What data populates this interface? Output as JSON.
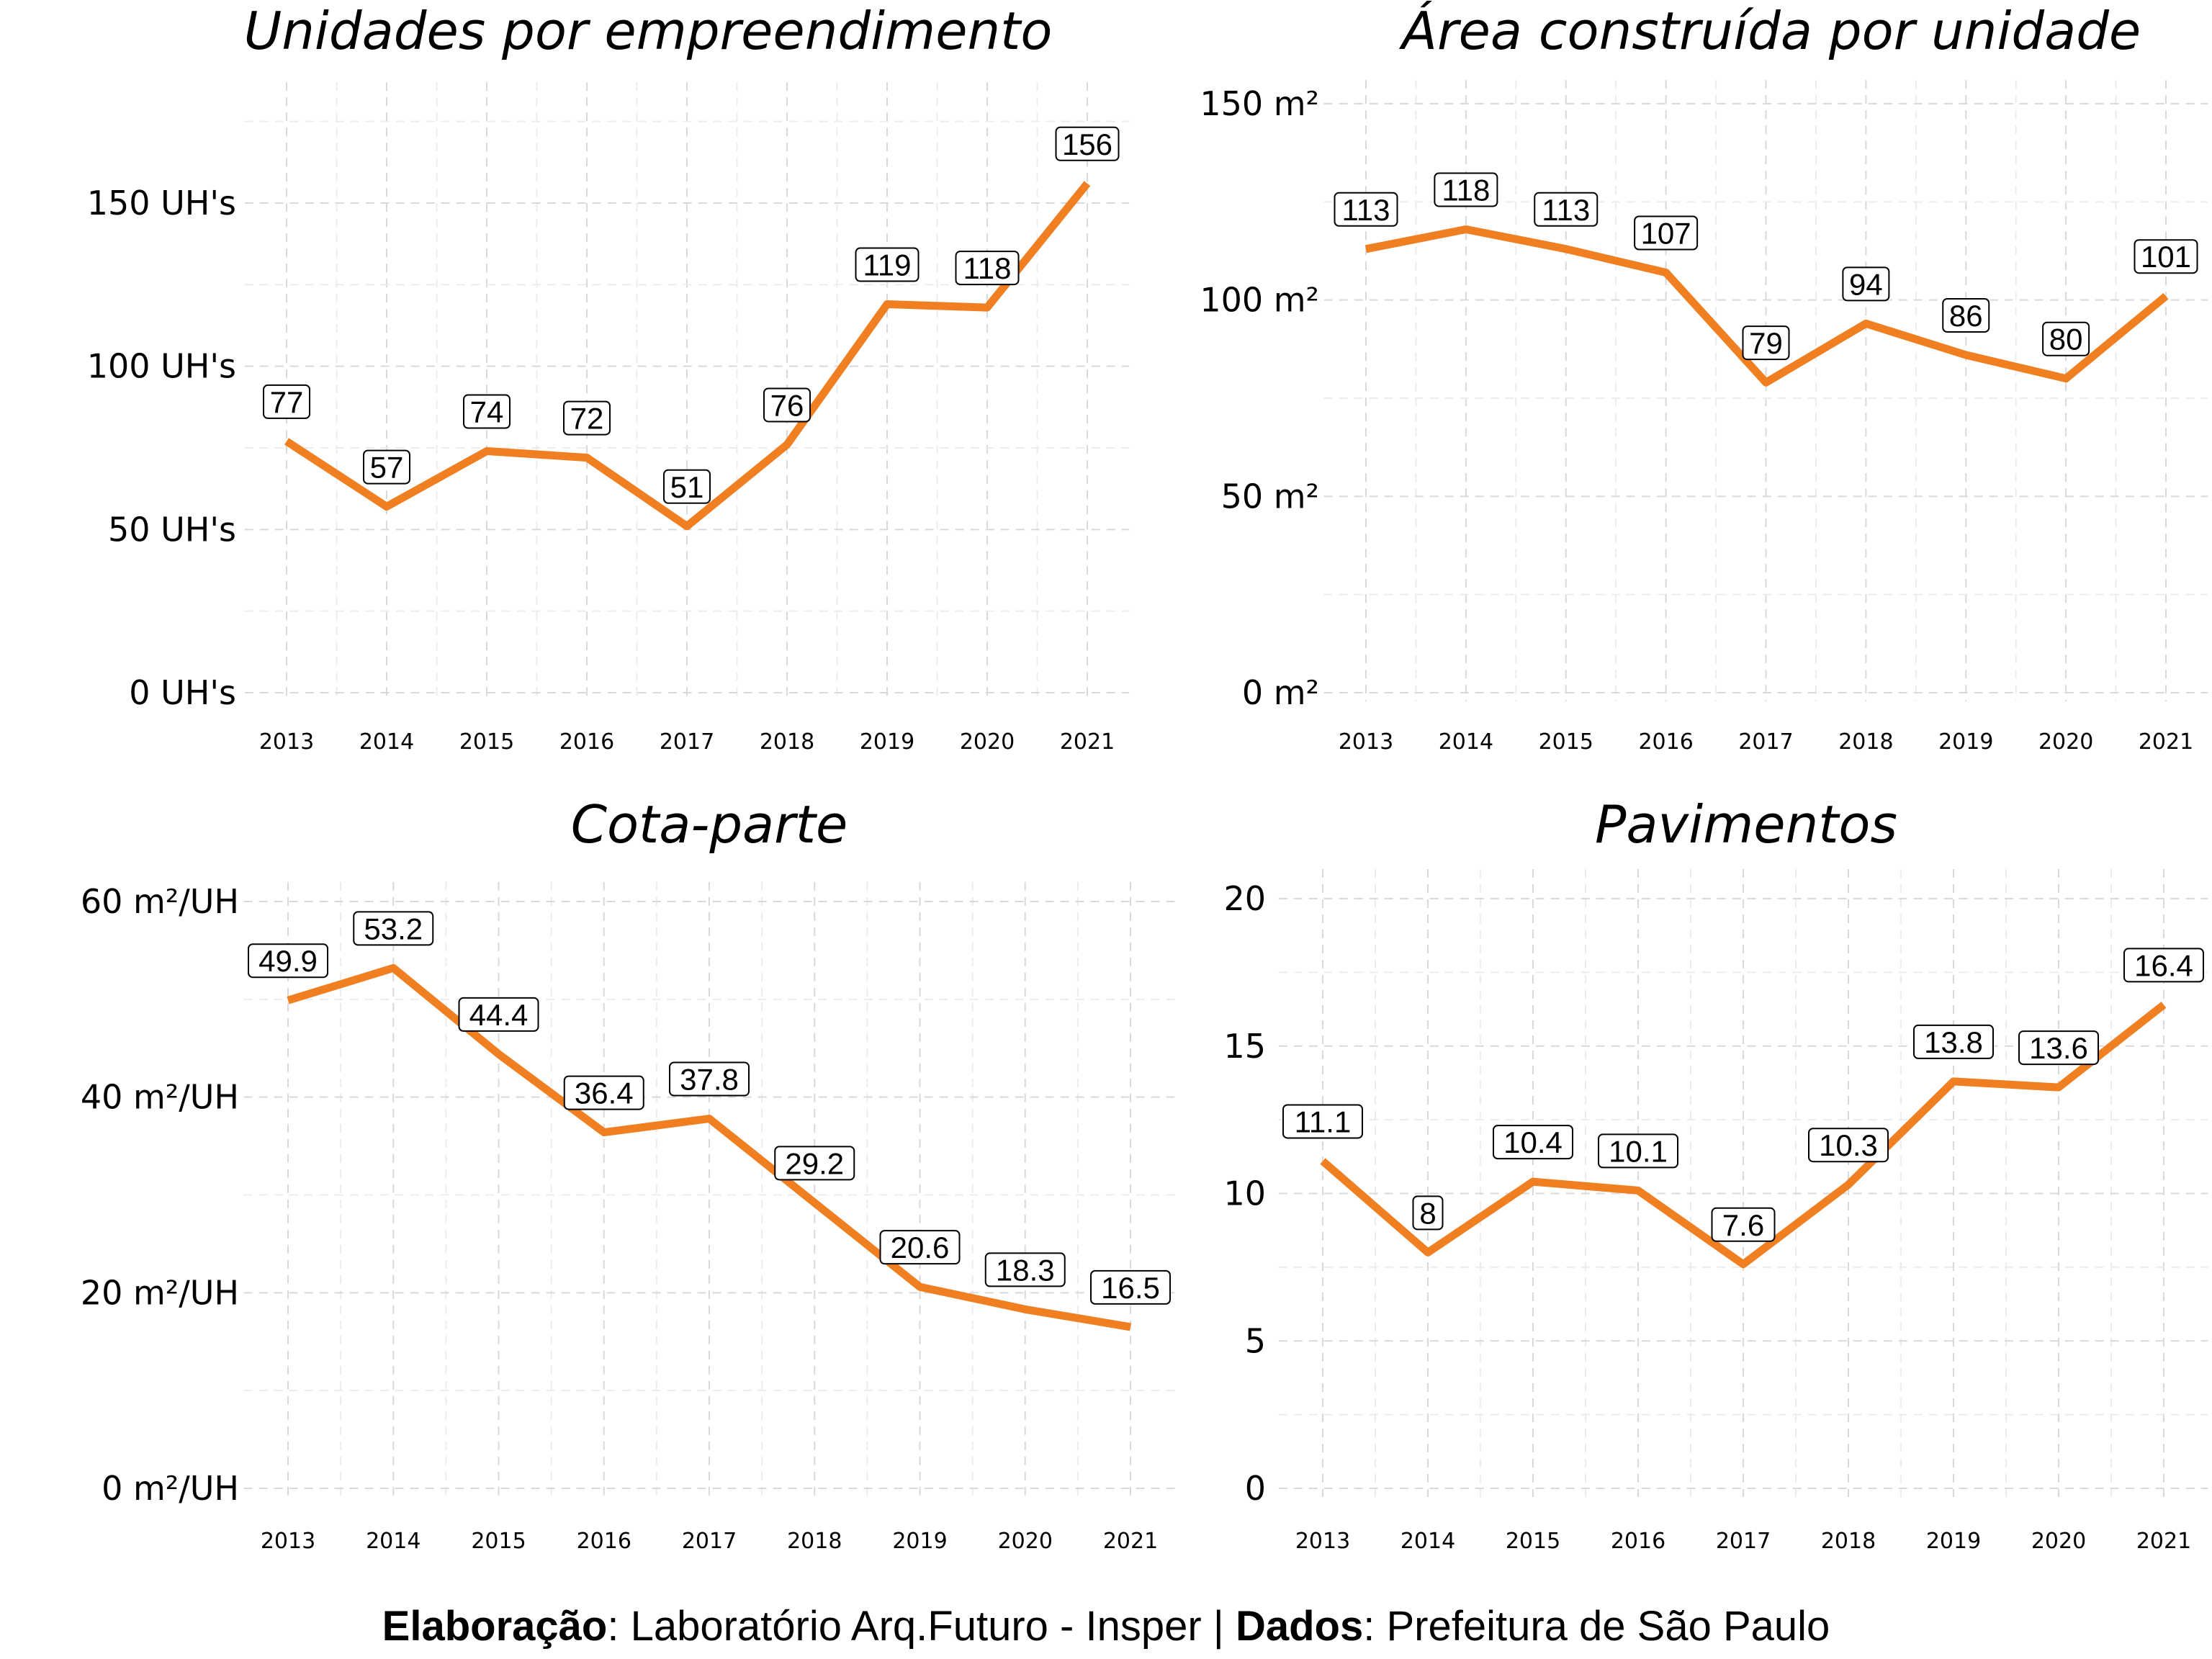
{
  "colors": {
    "line": "#f07f22",
    "background": "#ffffff"
  },
  "caption": {
    "credit_label": "Elaboração",
    "credit_value": ": Laboratório Arq.Futuro - Insper | ",
    "source_label": "Dados",
    "source_value": ": Prefeitura de São Paulo"
  },
  "chart_data": [
    {
      "type": "line",
      "title": "Unidades por empreendimento",
      "x": [
        "2013",
        "2014",
        "2015",
        "2016",
        "2017",
        "2018",
        "2019",
        "2020",
        "2021"
      ],
      "series": [
        {
          "values": [
            77,
            57,
            74,
            72,
            51,
            76,
            119,
            118,
            156
          ]
        }
      ],
      "data_labels": [
        "77",
        "57",
        "74",
        "72",
        "51",
        "76",
        "119",
        "118",
        "156"
      ],
      "yticks": [
        0,
        50,
        100,
        150
      ],
      "ytick_labels": [
        "0 UH's",
        "50 UH's",
        "100 UH's",
        "150 UH's"
      ],
      "ylim": [
        0,
        187
      ],
      "grid": true
    },
    {
      "type": "line",
      "title": "Área construída por unidade",
      "x": [
        "2013",
        "2014",
        "2015",
        "2016",
        "2017",
        "2018",
        "2019",
        "2020",
        "2021"
      ],
      "series": [
        {
          "values": [
            113,
            118,
            113,
            107,
            79,
            94,
            86,
            80,
            101
          ]
        }
      ],
      "data_labels": [
        "113",
        "118",
        "113",
        "107",
        "79",
        "94",
        "86",
        "80",
        "101"
      ],
      "yticks": [
        0,
        50,
        100,
        150
      ],
      "ytick_labels": [
        "0 m²",
        "50 m²",
        "100 m²",
        "150 m²"
      ],
      "ylim": [
        0,
        156
      ],
      "grid": true
    },
    {
      "type": "line",
      "title": "Cota-parte",
      "x": [
        "2013",
        "2014",
        "2015",
        "2016",
        "2017",
        "2018",
        "2019",
        "2020",
        "2021"
      ],
      "series": [
        {
          "values": [
            49.9,
            53.2,
            44.4,
            36.4,
            37.8,
            29.2,
            20.6,
            18.3,
            16.5
          ]
        }
      ],
      "data_labels": [
        "49.9",
        "53.2",
        "44.4",
        "36.4",
        "37.8",
        "29.2",
        "20.6",
        "18.3",
        "16.5"
      ],
      "yticks": [
        0,
        20,
        40,
        60
      ],
      "ytick_labels": [
        "0 m²/UH",
        "20 m²/UH",
        "40 m²/UH",
        "60 m²/UH"
      ],
      "ylim": [
        0,
        62
      ],
      "grid": true
    },
    {
      "type": "line",
      "title": "Pavimentos",
      "x": [
        "2013",
        "2014",
        "2015",
        "2016",
        "2017",
        "2018",
        "2019",
        "2020",
        "2021"
      ],
      "series": [
        {
          "values": [
            11.1,
            8,
            10.4,
            10.1,
            7.6,
            10.3,
            13.8,
            13.6,
            16.4
          ]
        }
      ],
      "data_labels": [
        "11.1",
        "8",
        "10.4",
        "10.1",
        "7.6",
        "10.3",
        "13.8",
        "13.6",
        "16.4"
      ],
      "yticks": [
        0,
        5,
        10,
        15,
        20
      ],
      "ytick_labels": [
        "0",
        "5",
        "10",
        "15",
        "20"
      ],
      "ylim": [
        0,
        21
      ],
      "grid": true
    }
  ]
}
